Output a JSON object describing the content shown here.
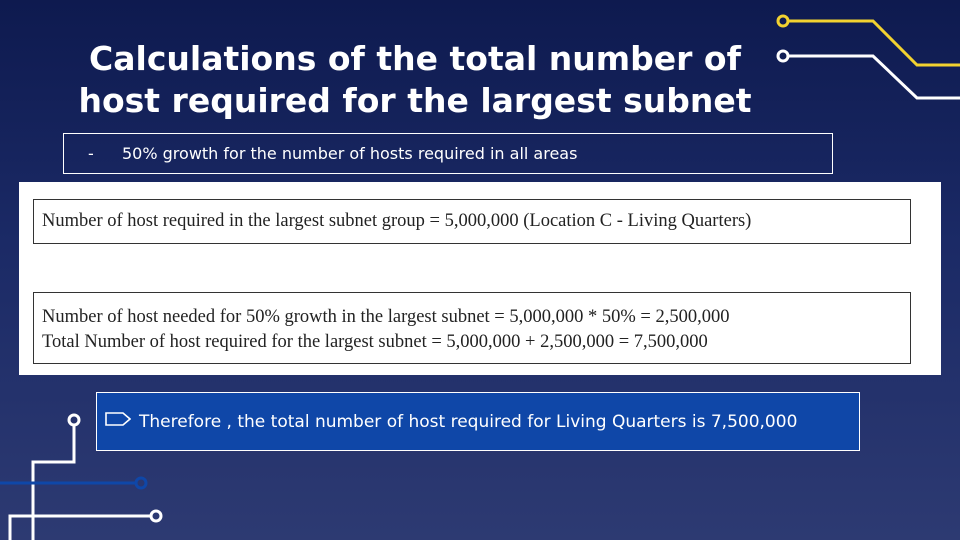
{
  "slide": {
    "title": "Calculations of the total number of host required for the largest subnet",
    "bullet": {
      "marker": "-",
      "text": "50% growth for the number of hosts required in all areas"
    },
    "calculations": {
      "line1": "Number of host required in the largest subnet group = 5,000,000 (Location C - Living Quarters)",
      "line2": "Number of host needed for 50% growth in the largest subnet = 5,000,000 * 50% = 2,500,000",
      "line3": "Total Number of host required for the largest subnet = 5,000,000 + 2,500,000 = 7,500,000"
    },
    "conclusion": "Therefore , the total number of host required for Living Quarters is 7,500,000"
  },
  "colors": {
    "background_top": "#0e1a4f",
    "background_bottom": "#2d3a72",
    "accent_yellow": "#f2d230",
    "accent_blue": "#0f47a8",
    "line_white": "#ffffff"
  }
}
